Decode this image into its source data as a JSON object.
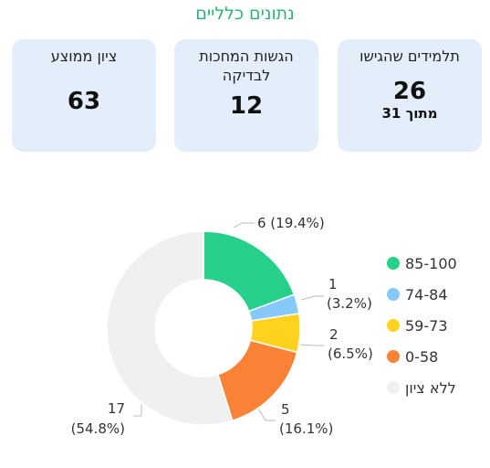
{
  "header": {
    "title": "נתונים כלליים"
  },
  "cards": [
    {
      "label": "תלמידים שהגישו",
      "value": "26",
      "sub": "מתוך 31"
    },
    {
      "label": "הגשות המחכות לבדיקה",
      "value": "12"
    },
    {
      "label": "ציון ממוצע",
      "value": "63"
    }
  ],
  "chart_data": {
    "type": "pie",
    "variant": "donut",
    "categories": [
      "85-100",
      "74-84",
      "59-73",
      "0-58",
      "ללא ציון"
    ],
    "values": [
      6,
      1,
      2,
      5,
      17
    ],
    "percent_labels": [
      "(19.4%)",
      "(3.2%)",
      "(6.5%)",
      "(16.1%)",
      "(54.8%)"
    ],
    "colors": [
      "#26cf8a",
      "#86c8f9",
      "#ffd21f",
      "#f98236",
      "#f0f0f0"
    ],
    "legend_position": "right"
  }
}
